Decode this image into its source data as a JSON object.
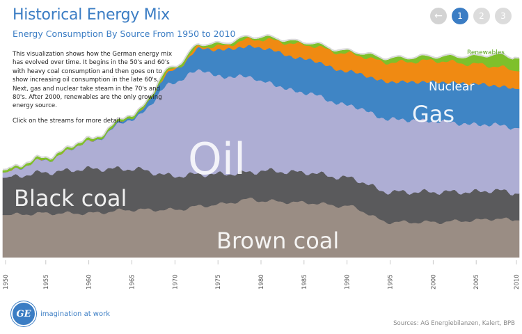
{
  "header": {
    "title": "Historical Energy Mix",
    "subtitle": "Energy Consumption By Source From 1950 to 2010"
  },
  "description": {
    "paragraph1": "This visualization shows how the German energy mix has evolved over time. It begins in the 50's and 60's with heavy coal consumption and then goes on to show increasing oil consumption in the late 60's. Next, gas and nuclear take steam in the 70's and 80's. After 2000, renewables are the only growing energy source.",
    "paragraph2": "Click on the streams for more detail."
  },
  "nav": {
    "back_icon": "arrow-left-icon",
    "pages": [
      "1",
      "2",
      "3"
    ],
    "active_page": "1"
  },
  "footer": {
    "logo_text": "GE",
    "tagline": "imagination at work",
    "sources": "Sources: AG Energiebilanzen, Kalert, BPB"
  },
  "colors": {
    "brown_coal": "#9a8d84",
    "black_coal": "#5a5a5c",
    "oil": "#aeaed4",
    "gas": "#3f85c5",
    "nuclear": "#f08a12",
    "renewables": "#7ec02b",
    "accent": "#3b7dc4"
  },
  "chart_data": {
    "type": "area",
    "title": "",
    "xlabel": "",
    "ylabel": "",
    "x": [
      1950,
      1955,
      1960,
      1965,
      1970,
      1973,
      1975,
      1979,
      1980,
      1985,
      1990,
      1995,
      2000,
      2005,
      2007,
      2010
    ],
    "tick_labels": [
      "1950",
      "1955",
      "1960",
      "1965",
      "1970",
      "1975",
      "1980",
      "1985",
      "1990",
      "1995",
      "2000",
      "2005",
      "2010"
    ],
    "series": [
      {
        "name": "Brown coal",
        "color": "#9a8d84",
        "values": [
          24,
          25,
          25,
          27,
          27,
          29,
          30,
          33,
          32,
          31,
          29,
          20,
          20,
          21,
          22,
          21
        ]
      },
      {
        "name": "Black coal",
        "color": "#5a5a5c",
        "values": [
          21,
          23,
          25,
          23,
          19,
          18,
          17,
          15,
          17,
          17,
          16,
          17,
          17,
          16,
          16,
          15
        ]
      },
      {
        "name": "Oil",
        "color": "#aeaed4",
        "values": [
          3,
          7,
          15,
          28,
          53,
          59,
          55,
          54,
          50,
          45,
          41,
          41,
          40,
          38,
          37,
          37
        ]
      },
      {
        "name": "Gas",
        "color": "#3f85c5",
        "values": [
          0,
          0,
          0,
          1,
          7,
          12,
          15,
          17,
          19,
          19,
          19,
          21,
          22,
          23,
          22,
          22
        ]
      },
      {
        "name": "Nuclear",
        "color": "#f08a12",
        "values": [
          0,
          0,
          0,
          0,
          0.5,
          1,
          2,
          4,
          5,
          8,
          10,
          11,
          12,
          11,
          11,
          10
        ]
      },
      {
        "name": "Renewables",
        "color": "#7ec02b",
        "values": [
          1,
          1,
          1,
          1,
          1,
          1,
          1,
          1,
          1,
          1,
          1,
          2,
          2,
          4,
          6,
          7
        ]
      }
    ],
    "stream_labels": [
      "Brown coal",
      "Black coal",
      "Oil",
      "Gas",
      "Nuclear",
      "Renewables"
    ],
    "grid": false,
    "legend": "inline labels"
  }
}
